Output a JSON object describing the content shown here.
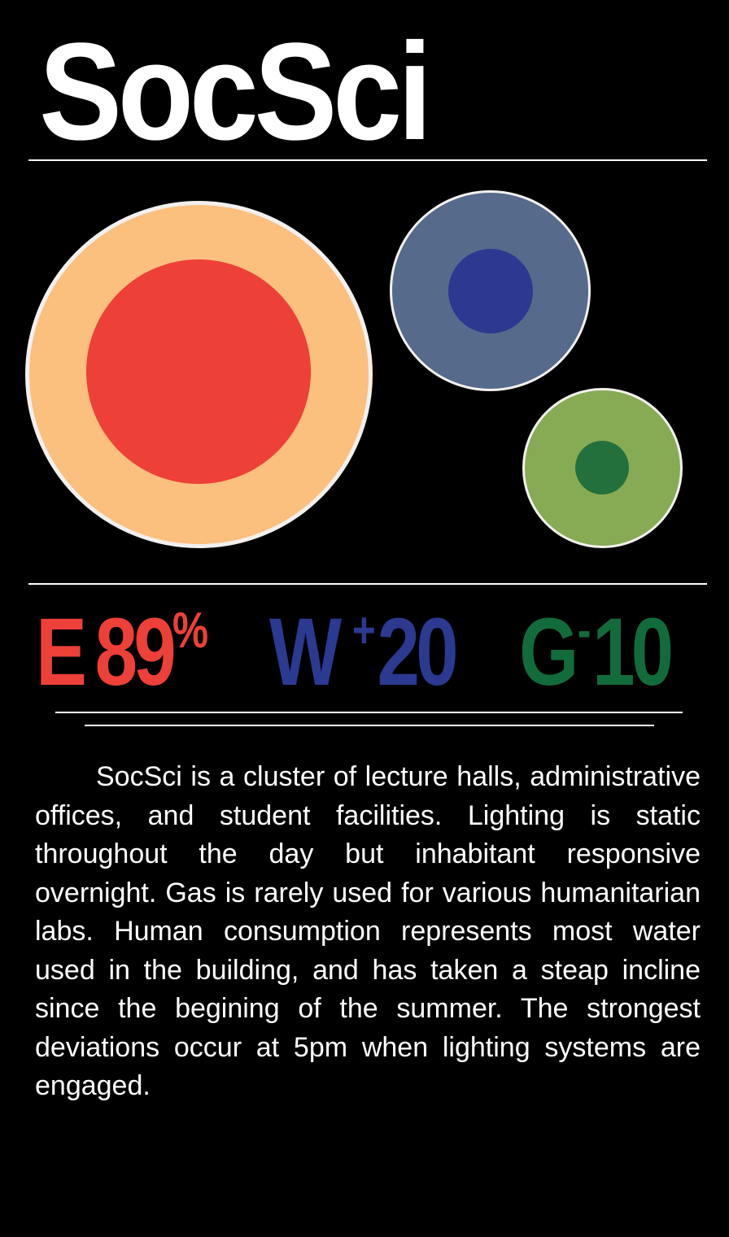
{
  "title": "SocSci",
  "colors": {
    "background": "#000000",
    "electricity_outer": "#fbbf7e",
    "electricity_inner": "#ed4038",
    "water_outer": "#566a8b",
    "water_inner": "#2b3990",
    "gas_outer": "#87ab55",
    "gas_inner": "#23703d",
    "rule": "#ffffff"
  },
  "stats": {
    "electricity": {
      "letter": "E",
      "value": "89",
      "suffix": "%"
    },
    "water": {
      "letter": "W",
      "sign": "+",
      "value": "20"
    },
    "gas": {
      "letter": "G",
      "sign": "-",
      "value": "10"
    }
  },
  "description": "SocSci is a cluster of lecture halls, admin­istrative offices, and student facilities. Lighting is static throughout the day but inhabitant re­sponsive overnight. Gas is rarely used for vari­ous humanitarian labs. Human consumption represents most water used in the building, and has taken a steap incline since the begin­ing of the summer. The strongest deviations occur at 5pm when lighting systems are en­gaged."
}
